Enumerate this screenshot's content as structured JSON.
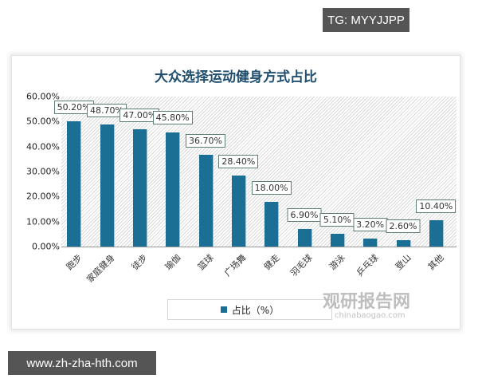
{
  "overlay": {
    "top_tag": "TG: MYYJJPP",
    "bottom_tag": "www.zh-zha-hth.com"
  },
  "watermark": {
    "brand": "观研报告网",
    "sub": "chinabaogao.com"
  },
  "colors": {
    "bar": "#1b6f95",
    "title": "#1f4e6e",
    "tag_bg": "#555555"
  },
  "chart_data": {
    "type": "bar",
    "title": "大众选择运动健身方式占比",
    "xlabel": "",
    "ylabel": "",
    "categories": [
      "跑步",
      "家庭健身",
      "徒步",
      "瑜伽",
      "篮球",
      "广场舞",
      "健走",
      "羽毛球",
      "游泳",
      "乒乓球",
      "登山",
      "其他"
    ],
    "values": [
      50.2,
      48.7,
      47.0,
      45.8,
      36.7,
      28.4,
      18.0,
      6.9,
      5.1,
      3.2,
      2.6,
      10.4
    ],
    "value_labels": [
      "50.20%",
      "48.70%",
      "47.00%",
      "45.80%",
      "36.70%",
      "28.40%",
      "18.00%",
      "6.90%",
      "5.10%",
      "3.20%",
      "2.60%",
      "10.40%"
    ],
    "yticks": [
      "0.00%",
      "10.00%",
      "20.00%",
      "30.00%",
      "40.00%",
      "50.00%",
      "60.00%"
    ],
    "ylim": [
      0,
      60
    ],
    "grid": false,
    "legend": {
      "position": "bottom",
      "entries": [
        "占比（%）"
      ]
    }
  }
}
